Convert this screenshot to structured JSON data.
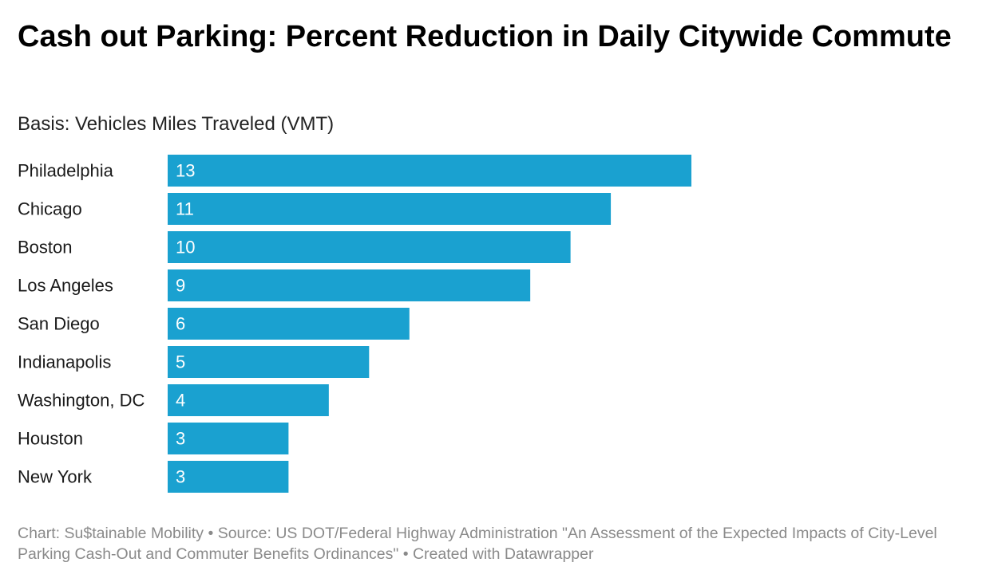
{
  "title": "Cash out Parking: Percent Reduction in Daily Citywide Commute",
  "subtitle": "Basis: Vehicles Miles Traveled (VMT)",
  "footer": "Chart: Su$tainable Mobility • Source: US DOT/Federal Highway Administration \"An Assessment of the Expected Impacts of City-Level Parking Cash-Out and Commuter Benefits Ordinances\" • Created with Datawrapper",
  "colors": {
    "bar": "#1aa1d0",
    "bar_label": "#ffffff",
    "category_label": "#1a1a1a"
  },
  "chart_data": {
    "type": "bar",
    "orientation": "horizontal",
    "categories": [
      "Philadelphia",
      "Chicago",
      "Boston",
      "Los Angeles",
      "San Diego",
      "Indianapolis",
      "Washington, DC",
      "Houston",
      "New York"
    ],
    "values": [
      13,
      11,
      10,
      9,
      6,
      5,
      4,
      3,
      3
    ],
    "title": "Cash out Parking: Percent Reduction in Daily Citywide Commute",
    "subtitle": "Basis: Vehicles Miles Traveled (VMT)",
    "xlim": [
      0,
      13
    ],
    "grid": false,
    "legend": "none"
  }
}
